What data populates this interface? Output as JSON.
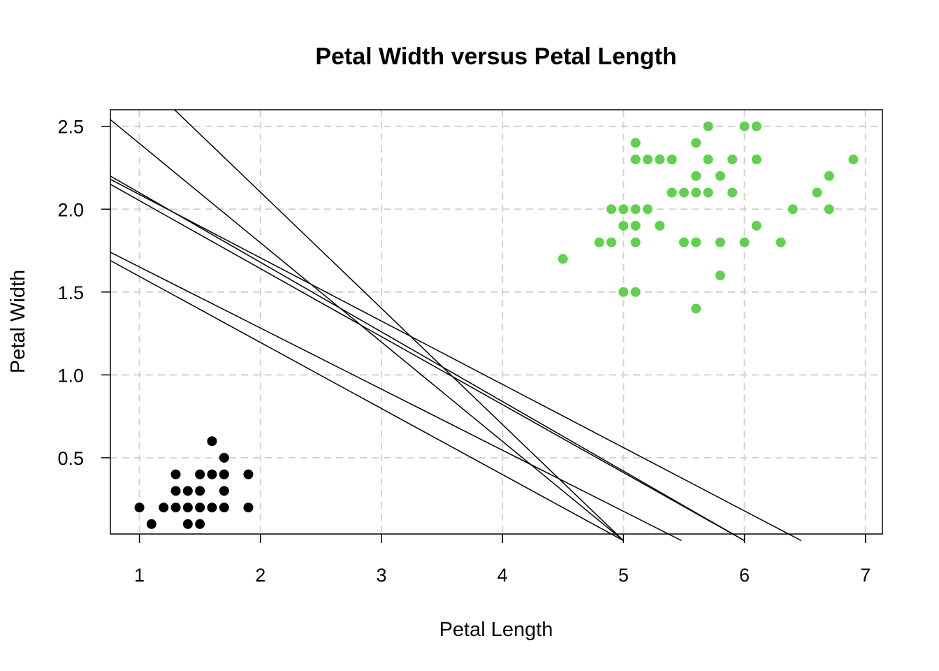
{
  "chart_data": {
    "type": "scatter",
    "title": "Petal Width versus Petal Length",
    "xlabel": "Petal Length",
    "ylabel": "Petal Width",
    "xlim": [
      0.76,
      7.14
    ],
    "ylim": [
      0.04,
      2.6
    ],
    "x_ticks": [
      "1",
      "2",
      "3",
      "4",
      "5",
      "6",
      "7"
    ],
    "y_ticks": [
      "0.5",
      "1.0",
      "1.5",
      "2.0",
      "2.5"
    ],
    "grid": true,
    "colors": {
      "series_a": "#000000",
      "series_b": "#61d04f",
      "grid": "#d3d3d3",
      "line": "#000000"
    },
    "series": [
      {
        "color": "#000000",
        "points": [
          [
            1.0,
            0.2
          ],
          [
            1.1,
            0.1
          ],
          [
            1.2,
            0.2
          ],
          [
            1.3,
            0.2
          ],
          [
            1.3,
            0.3
          ],
          [
            1.3,
            0.4
          ],
          [
            1.4,
            0.1
          ],
          [
            1.4,
            0.2
          ],
          [
            1.4,
            0.3
          ],
          [
            1.5,
            0.1
          ],
          [
            1.5,
            0.2
          ],
          [
            1.5,
            0.3
          ],
          [
            1.5,
            0.4
          ],
          [
            1.6,
            0.2
          ],
          [
            1.6,
            0.4
          ],
          [
            1.6,
            0.6
          ],
          [
            1.7,
            0.2
          ],
          [
            1.7,
            0.3
          ],
          [
            1.7,
            0.4
          ],
          [
            1.7,
            0.5
          ],
          [
            1.9,
            0.2
          ],
          [
            1.9,
            0.4
          ]
        ]
      },
      {
        "color": "#61d04f",
        "points": [
          [
            4.5,
            1.7
          ],
          [
            4.8,
            1.8
          ],
          [
            4.9,
            1.8
          ],
          [
            4.9,
            2.0
          ],
          [
            5.0,
            1.5
          ],
          [
            5.0,
            1.9
          ],
          [
            5.0,
            2.0
          ],
          [
            5.1,
            1.5
          ],
          [
            5.1,
            1.8
          ],
          [
            5.1,
            1.9
          ],
          [
            5.1,
            2.0
          ],
          [
            5.1,
            2.3
          ],
          [
            5.1,
            2.4
          ],
          [
            5.2,
            2.0
          ],
          [
            5.2,
            2.3
          ],
          [
            5.3,
            1.9
          ],
          [
            5.3,
            2.3
          ],
          [
            5.4,
            2.1
          ],
          [
            5.4,
            2.3
          ],
          [
            5.5,
            1.8
          ],
          [
            5.5,
            2.1
          ],
          [
            5.6,
            1.4
          ],
          [
            5.6,
            1.8
          ],
          [
            5.6,
            2.1
          ],
          [
            5.6,
            2.2
          ],
          [
            5.6,
            2.4
          ],
          [
            5.7,
            2.1
          ],
          [
            5.7,
            2.3
          ],
          [
            5.7,
            2.5
          ],
          [
            5.8,
            1.6
          ],
          [
            5.8,
            1.8
          ],
          [
            5.8,
            2.2
          ],
          [
            5.9,
            2.1
          ],
          [
            5.9,
            2.3
          ],
          [
            6.0,
            1.8
          ],
          [
            6.0,
            2.5
          ],
          [
            6.1,
            1.9
          ],
          [
            6.1,
            2.3
          ],
          [
            6.1,
            2.5
          ],
          [
            6.3,
            1.8
          ],
          [
            6.4,
            2.0
          ],
          [
            6.6,
            2.1
          ],
          [
            6.7,
            2.0
          ],
          [
            6.7,
            2.2
          ],
          [
            6.9,
            2.3
          ]
        ]
      }
    ],
    "lines": [
      {
        "x0": 0.76,
        "y0": 2.54,
        "x1": 5.0,
        "y1": 0.0
      },
      {
        "x0": 1.29,
        "y0": 2.6,
        "x1": 5.0,
        "y1": 0.0
      },
      {
        "x0": 0.76,
        "y0": 2.2,
        "x1": 6.0,
        "y1": 0.0
      },
      {
        "x0": 0.76,
        "y0": 2.15,
        "x1": 6.0,
        "y1": 0.0
      },
      {
        "x0": 0.76,
        "y0": 2.18,
        "x1": 6.47,
        "y1": 0.0
      },
      {
        "x0": 0.76,
        "y0": 1.74,
        "x1": 5.48,
        "y1": 0.0
      },
      {
        "x0": 0.76,
        "y0": 1.69,
        "x1": 5.0,
        "y1": 0.0
      }
    ]
  }
}
